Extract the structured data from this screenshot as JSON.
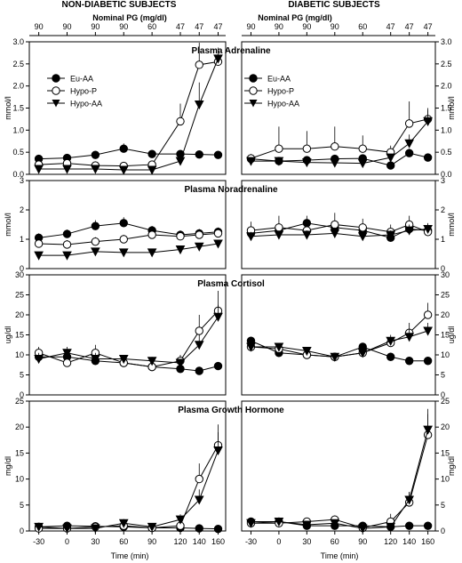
{
  "figure": {
    "left_heading": "NON-DIABETIC SUBJECTS",
    "right_heading": "DIABETIC SUBJECTS",
    "nominal_label": "Nominal PG (mg/dl)",
    "nominal_values": [
      "90",
      "90",
      "90",
      "90",
      "60",
      "47",
      "47",
      "47"
    ],
    "xlabel": "Time (min)"
  },
  "chart_data": [
    {
      "type": "line",
      "title": "Plasma Adrenaline",
      "ylabel": "mmol/l",
      "ylim": [
        0,
        3.0
      ],
      "yticks": [
        "0.0",
        "0.5",
        "1.0",
        "1.5",
        "2.0",
        "2.5",
        "3.0"
      ],
      "x": [
        -30,
        0,
        30,
        60,
        90,
        120,
        140,
        160
      ],
      "legend": "top-left",
      "panels": [
        {
          "group": "NON-DIABETIC SUBJECTS",
          "series": [
            {
              "name": "Eu-AA",
              "marker": "filled-circle",
              "values": [
                0.35,
                0.37,
                0.44,
                0.58,
                0.46,
                0.46,
                0.45,
                0.44
              ],
              "err": [
                0.05,
                0.05,
                0.06,
                0.12,
                0.06,
                0.06,
                0.05,
                0.05
              ]
            },
            {
              "name": "Hypo-P",
              "marker": "open-circle",
              "values": [
                0.22,
                0.25,
                0.2,
                0.19,
                0.22,
                1.2,
                2.48,
                2.55
              ],
              "err": [
                0.05,
                0.05,
                0.05,
                0.05,
                0.05,
                0.4,
                0.5,
                0.15
              ]
            },
            {
              "name": "Hypo-AA",
              "marker": "filled-triangle",
              "values": [
                0.12,
                0.12,
                0.12,
                0.1,
                0.1,
                0.3,
                1.58,
                2.62
              ],
              "err": [
                0.03,
                0.03,
                0.03,
                0.03,
                0.03,
                0.08,
                0.5,
                0.25
              ]
            }
          ]
        },
        {
          "group": "DIABETIC SUBJECTS",
          "series": [
            {
              "name": "Eu-AA",
              "marker": "filled-circle",
              "values": [
                0.35,
                0.3,
                0.32,
                0.35,
                0.36,
                0.2,
                0.48,
                0.38
              ],
              "err": [
                0.05,
                0.05,
                0.05,
                0.05,
                0.05,
                0.05,
                0.1,
                0.05
              ]
            },
            {
              "name": "Hypo-P",
              "marker": "open-circle",
              "values": [
                0.36,
                0.58,
                0.58,
                0.63,
                0.58,
                0.5,
                1.15,
                1.25
              ],
              "err": [
                0.1,
                0.5,
                0.4,
                0.45,
                0.3,
                0.15,
                0.5,
                0.2
              ]
            },
            {
              "name": "Hypo-AA",
              "marker": "filled-triangle",
              "values": [
                0.3,
                0.3,
                0.27,
                0.26,
                0.25,
                0.38,
                0.7,
                1.2
              ],
              "err": [
                0.05,
                0.05,
                0.05,
                0.05,
                0.05,
                0.08,
                0.2,
                0.3
              ]
            }
          ]
        }
      ]
    },
    {
      "type": "line",
      "title": "Plasma Noradrenaline",
      "ylabel": "mmol/l",
      "ylim": [
        0,
        3
      ],
      "yticks": [
        "0",
        "1",
        "2",
        "3"
      ],
      "x": [
        -30,
        0,
        30,
        60,
        90,
        120,
        140,
        160
      ],
      "panels": [
        {
          "group": "NON-DIABETIC SUBJECTS",
          "series": [
            {
              "name": "Eu-AA",
              "marker": "filled-circle",
              "values": [
                1.05,
                1.18,
                1.45,
                1.55,
                1.3,
                1.15,
                1.2,
                1.25
              ],
              "err": [
                0.15,
                0.15,
                0.2,
                0.2,
                0.15,
                0.15,
                0.15,
                0.15
              ]
            },
            {
              "name": "Hypo-P",
              "marker": "open-circle",
              "values": [
                0.85,
                0.82,
                0.92,
                1.0,
                1.15,
                1.1,
                1.15,
                1.2
              ],
              "err": [
                0.15,
                0.15,
                0.15,
                0.15,
                0.15,
                0.15,
                0.15,
                0.15
              ]
            },
            {
              "name": "Hypo-AA",
              "marker": "filled-triangle",
              "values": [
                0.45,
                0.45,
                0.58,
                0.55,
                0.55,
                0.65,
                0.75,
                0.85
              ],
              "err": [
                0.05,
                0.05,
                0.1,
                0.1,
                0.1,
                0.1,
                0.1,
                0.1
              ]
            }
          ]
        },
        {
          "group": "DIABETIC SUBJECTS",
          "series": [
            {
              "name": "Eu-AA",
              "marker": "filled-circle",
              "values": [
                1.2,
                1.3,
                1.55,
                1.4,
                1.3,
                1.05,
                1.35,
                1.3
              ],
              "err": [
                0.2,
                0.2,
                0.25,
                0.25,
                0.2,
                0.2,
                0.2,
                0.2
              ]
            },
            {
              "name": "Hypo-P",
              "marker": "open-circle",
              "values": [
                1.3,
                1.4,
                1.3,
                1.5,
                1.4,
                1.25,
                1.5,
                1.25
              ],
              "err": [
                0.3,
                0.4,
                0.3,
                0.4,
                0.3,
                0.25,
                0.3,
                0.25
              ]
            },
            {
              "name": "Hypo-AA",
              "marker": "filled-triangle",
              "values": [
                1.1,
                1.15,
                1.15,
                1.2,
                1.1,
                1.15,
                1.3,
                1.35
              ],
              "err": [
                0.15,
                0.15,
                0.15,
                0.2,
                0.15,
                0.15,
                0.2,
                0.2
              ]
            }
          ]
        }
      ]
    },
    {
      "type": "line",
      "title": "Plasma Cortisol",
      "ylabel": "ug/dl",
      "ylim": [
        0,
        30
      ],
      "yticks": [
        "0",
        "5",
        "10",
        "15",
        "20",
        "25",
        "30"
      ],
      "x": [
        -30,
        0,
        30,
        60,
        90,
        120,
        140,
        160
      ],
      "panels": [
        {
          "group": "NON-DIABETIC SUBJECTS",
          "series": [
            {
              "name": "Eu-AA",
              "marker": "filled-circle",
              "values": [
                9.5,
                9.5,
                8.5,
                8.0,
                7.0,
                6.5,
                6.0,
                7.2
              ],
              "err": [
                1.0,
                1.0,
                1.0,
                1.0,
                1.0,
                1.0,
                0.8,
                0.8
              ]
            },
            {
              "name": "Hypo-P",
              "marker": "open-circle",
              "values": [
                10.5,
                8.0,
                10.5,
                8.0,
                7.0,
                8.5,
                16.0,
                21.0
              ],
              "err": [
                1.5,
                1.5,
                2.0,
                1.2,
                1.2,
                1.5,
                4.0,
                5.0
              ]
            },
            {
              "name": "Hypo-AA",
              "marker": "filled-triangle",
              "values": [
                9.0,
                10.5,
                9.0,
                9.0,
                8.5,
                8.0,
                12.5,
                19.5
              ],
              "err": [
                1.5,
                1.5,
                1.5,
                1.0,
                1.0,
                1.0,
                2.5,
                3.0
              ]
            }
          ]
        },
        {
          "group": "DIABETIC SUBJECTS",
          "series": [
            {
              "name": "Eu-AA",
              "marker": "filled-circle",
              "values": [
                13.5,
                10.5,
                10.0,
                9.5,
                12.0,
                9.5,
                8.5,
                8.5
              ],
              "err": [
                1.0,
                1.0,
                1.0,
                1.0,
                1.0,
                1.0,
                1.0,
                1.0
              ]
            },
            {
              "name": "Hypo-P",
              "marker": "open-circle",
              "values": [
                12.0,
                11.5,
                10.0,
                9.5,
                10.5,
                13.0,
                15.5,
                20.0
              ],
              "err": [
                1.0,
                1.5,
                1.0,
                1.0,
                1.0,
                1.5,
                2.5,
                3.0
              ]
            },
            {
              "name": "Hypo-AA",
              "marker": "filled-triangle",
              "values": [
                12.0,
                12.0,
                11.0,
                9.5,
                10.5,
                13.5,
                14.5,
                16.0
              ],
              "err": [
                1.0,
                1.0,
                1.0,
                1.0,
                1.0,
                1.5,
                2.0,
                2.0
              ]
            }
          ]
        }
      ]
    },
    {
      "type": "line",
      "title": "Plasma Growth Hormone",
      "ylabel": "mg/dl",
      "ylim": [
        0,
        25
      ],
      "yticks": [
        "0",
        "5",
        "10",
        "15",
        "20",
        "25"
      ],
      "x": [
        -30,
        0,
        30,
        60,
        90,
        120,
        140,
        160
      ],
      "panels": [
        {
          "group": "NON-DIABETIC SUBJECTS",
          "series": [
            {
              "name": "Eu-AA",
              "marker": "filled-circle",
              "values": [
                0.8,
                1.0,
                0.9,
                0.8,
                0.6,
                0.6,
                0.5,
                0.4
              ],
              "err": [
                0.3,
                0.3,
                0.3,
                0.3,
                0.3,
                0.3,
                0.3,
                0.3
              ]
            },
            {
              "name": "Hypo-P",
              "marker": "open-circle",
              "values": [
                0.5,
                0.5,
                0.8,
                1.0,
                0.6,
                1.0,
                10.0,
                16.5
              ],
              "err": [
                0.3,
                0.3,
                0.3,
                0.5,
                0.3,
                1.0,
                3.0,
                4.0
              ]
            },
            {
              "name": "Hypo-AA",
              "marker": "filled-triangle",
              "values": [
                0.8,
                0.5,
                0.5,
                1.5,
                0.8,
                2.2,
                6.0,
                15.5
              ],
              "err": [
                0.3,
                0.3,
                0.3,
                0.8,
                0.3,
                1.0,
                2.0,
                3.5
              ]
            }
          ]
        },
        {
          "group": "DIABETIC SUBJECTS",
          "series": [
            {
              "name": "Eu-AA",
              "marker": "filled-circle",
              "values": [
                1.8,
                1.8,
                1.0,
                1.0,
                1.0,
                0.8,
                1.0,
                1.0
              ],
              "err": [
                0.3,
                0.3,
                0.3,
                0.3,
                0.3,
                0.3,
                0.3,
                0.3
              ]
            },
            {
              "name": "Hypo-P",
              "marker": "open-circle",
              "values": [
                1.5,
                1.5,
                1.8,
                2.2,
                0.6,
                1.8,
                5.5,
                18.5
              ],
              "err": [
                0.5,
                0.5,
                0.5,
                0.8,
                0.3,
                1.5,
                2.0,
                4.0
              ]
            },
            {
              "name": "Hypo-AA",
              "marker": "filled-triangle",
              "values": [
                1.5,
                1.8,
                1.2,
                1.5,
                0.5,
                0.8,
                6.0,
                19.5
              ],
              "err": [
                0.5,
                0.5,
                0.5,
                0.5,
                0.3,
                0.5,
                1.5,
                4.0
              ]
            }
          ]
        }
      ]
    }
  ]
}
